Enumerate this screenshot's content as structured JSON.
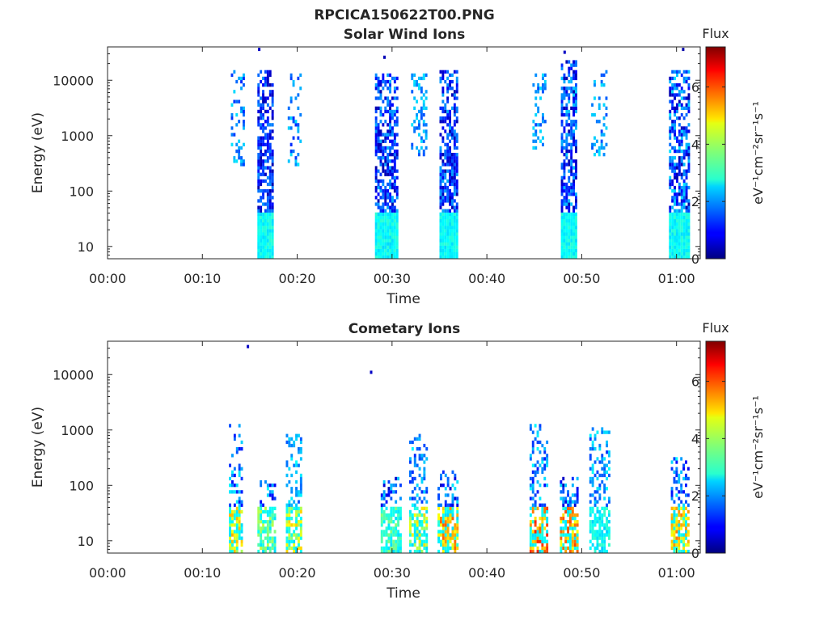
{
  "figure": {
    "title": "RPCICA150622T00.PNG",
    "colorbar_ticks": [
      0,
      2,
      4,
      6
    ],
    "colorbar_range": [
      0,
      7.4
    ]
  },
  "chart_data": [
    {
      "type": "heatmap",
      "title": "Solar Wind Ions",
      "xlabel": "Time",
      "ylabel": "Energy (eV)",
      "x_unit": "minutes",
      "x_range": [
        0,
        62.5
      ],
      "x_ticks": [
        0,
        10,
        20,
        30,
        40,
        50,
        60
      ],
      "x_tick_labels": [
        "00:00",
        "00:10",
        "00:20",
        "00:30",
        "00:40",
        "00:50",
        "01:00"
      ],
      "y_scale": "log",
      "y_range": [
        6,
        40000
      ],
      "y_ticks": [
        10,
        100,
        1000,
        10000
      ],
      "y_tick_labels": [
        "10",
        "100",
        "1000",
        "10000"
      ],
      "colorbar_label_top": "Flux",
      "colorbar_label": "eV⁻¹cm⁻²sr⁻¹s⁻¹",
      "bursts": [
        {
          "t": [
            13.0,
            14.5
          ],
          "e": [
            300,
            16000
          ],
          "density": 0.35,
          "flux": [
            1.2,
            2.6
          ],
          "low": false
        },
        {
          "t": [
            15.8,
            17.6
          ],
          "e": [
            6,
            16000
          ],
          "density": 0.8,
          "flux": [
            0.3,
            2.0
          ],
          "low": true
        },
        {
          "t": [
            19.0,
            20.6
          ],
          "e": [
            300,
            14000
          ],
          "density": 0.35,
          "flux": [
            1.2,
            2.6
          ],
          "low": false
        },
        {
          "t": [
            28.2,
            30.6
          ],
          "e": [
            6,
            14000
          ],
          "density": 0.75,
          "flux": [
            0.3,
            2.2
          ],
          "low": true
        },
        {
          "t": [
            32.0,
            33.8
          ],
          "e": [
            400,
            14000
          ],
          "density": 0.35,
          "flux": [
            1.5,
            2.6
          ],
          "low": false
        },
        {
          "t": [
            35.0,
            37.0
          ],
          "e": [
            6,
            16000
          ],
          "density": 0.8,
          "flux": [
            0.3,
            2.2
          ],
          "low": true
        },
        {
          "t": [
            44.8,
            46.3
          ],
          "e": [
            600,
            14000
          ],
          "density": 0.35,
          "flux": [
            1.4,
            2.6
          ],
          "low": false
        },
        {
          "t": [
            47.8,
            49.6
          ],
          "e": [
            6,
            22000
          ],
          "density": 0.85,
          "flux": [
            0.3,
            2.4
          ],
          "low": true
        },
        {
          "t": [
            51.0,
            52.8
          ],
          "e": [
            400,
            16000
          ],
          "density": 0.35,
          "flux": [
            1.4,
            2.6
          ],
          "low": false
        },
        {
          "t": [
            59.2,
            61.4
          ],
          "e": [
            6,
            16000
          ],
          "density": 0.75,
          "flux": [
            0.3,
            2.6
          ],
          "low": true
        }
      ],
      "isolated_points": [
        {
          "t": 16.0,
          "e": 36000,
          "flux": 0.5
        },
        {
          "t": 29.2,
          "e": 26000,
          "flux": 0.4
        },
        {
          "t": 48.2,
          "e": 32000,
          "flux": 0.5
        },
        {
          "t": 60.7,
          "e": 36000,
          "flux": 0.3
        }
      ]
    },
    {
      "type": "heatmap",
      "title": "Cometary Ions",
      "xlabel": "Time",
      "ylabel": "Energy (eV)",
      "x_unit": "minutes",
      "x_range": [
        0,
        62.5
      ],
      "x_ticks": [
        0,
        10,
        20,
        30,
        40,
        50,
        60
      ],
      "x_tick_labels": [
        "00:00",
        "00:10",
        "00:20",
        "00:30",
        "00:40",
        "00:50",
        "01:00"
      ],
      "y_scale": "log",
      "y_range": [
        6,
        40000
      ],
      "y_ticks": [
        10,
        100,
        1000,
        10000
      ],
      "y_tick_labels": [
        "10",
        "100",
        "1000",
        "10000"
      ],
      "colorbar_label_top": "Flux",
      "colorbar_label": "eV⁻¹cm⁻²sr⁻¹s⁻¹",
      "bursts": [
        {
          "t": [
            12.8,
            14.4
          ],
          "e": [
            6,
            1300
          ],
          "density": 0.45,
          "flux": [
            1.0,
            2.8
          ],
          "peak": 5.2,
          "low": true
        },
        {
          "t": [
            15.8,
            17.8
          ],
          "e": [
            6,
            120
          ],
          "density": 0.45,
          "flux": [
            0.5,
            2.8
          ],
          "peak": 4.2,
          "low": true
        },
        {
          "t": [
            18.8,
            20.6
          ],
          "e": [
            6,
            900
          ],
          "density": 0.45,
          "flux": [
            1.5,
            2.8
          ],
          "peak": 5.0,
          "low": true
        },
        {
          "t": [
            28.8,
            31.0
          ],
          "e": [
            6,
            150
          ],
          "density": 0.5,
          "flux": [
            0.4,
            2.6
          ],
          "peak": 3.8,
          "low": true
        },
        {
          "t": [
            31.8,
            33.8
          ],
          "e": [
            6,
            900
          ],
          "density": 0.45,
          "flux": [
            1.2,
            2.8
          ],
          "peak": 5.0,
          "low": true
        },
        {
          "t": [
            34.8,
            37.0
          ],
          "e": [
            6,
            200
          ],
          "density": 0.55,
          "flux": [
            0.4,
            2.6
          ],
          "peak": 5.8,
          "low": true
        },
        {
          "t": [
            44.5,
            46.4
          ],
          "e": [
            6,
            1200
          ],
          "density": 0.5,
          "flux": [
            1.0,
            2.8
          ],
          "peak": 6.3,
          "low": true
        },
        {
          "t": [
            47.7,
            49.8
          ],
          "e": [
            6,
            150
          ],
          "density": 0.55,
          "flux": [
            0.4,
            2.6
          ],
          "peak": 6.0,
          "low": true
        },
        {
          "t": [
            50.8,
            53.0
          ],
          "e": [
            6,
            1100
          ],
          "density": 0.45,
          "flux": [
            1.3,
            2.8
          ],
          "peak": 3.2,
          "low": true
        },
        {
          "t": [
            59.4,
            61.4
          ],
          "e": [
            6,
            330
          ],
          "density": 0.5,
          "flux": [
            0.8,
            2.8
          ],
          "peak": 5.6,
          "low": true
        }
      ],
      "isolated_points": [
        {
          "t": 14.8,
          "e": 32000,
          "flux": 0.5
        },
        {
          "t": 27.8,
          "e": 11000,
          "flux": 0.5
        }
      ]
    }
  ]
}
